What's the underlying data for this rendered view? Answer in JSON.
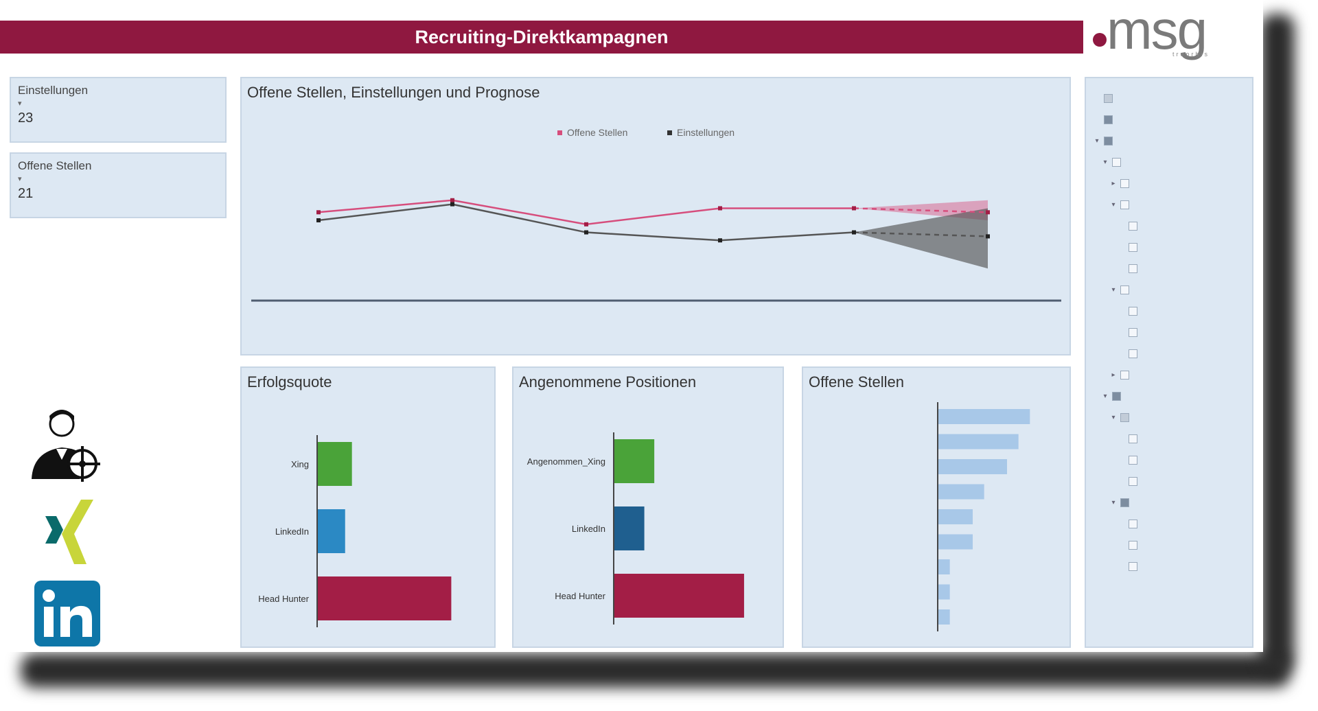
{
  "header": {
    "title": "Recruiting-Direktkampagnen"
  },
  "logo": {
    "text": "msg",
    "subtext": "treorbis",
    "color": "#8f1840"
  },
  "colors": {
    "accent": "#8f1840",
    "panel": "#dde8f3",
    "green": "#4aa339",
    "blue": "#2b89c4",
    "crimson": "#a31e46",
    "bar": "#a8c8e8"
  },
  "kpis": [
    {
      "title": "Einstellungen",
      "value": "23"
    },
    {
      "title": "Offene Stellen",
      "value": "21"
    }
  ],
  "trend": {
    "title": "Offene Stellen, Einstellungen und Prognose",
    "legend": [
      "Offene Stellen",
      "Einstellungen"
    ]
  },
  "erfolgsquote": {
    "title": "Erfolgsquote"
  },
  "angenommene": {
    "title": "Angenommene Positionen"
  },
  "offene": {
    "title": "Offene Stellen"
  },
  "chart_data": [
    {
      "type": "line",
      "title": "Offene Stellen, Einstellungen und Prognose",
      "series": [
        {
          "name": "Offene Stellen",
          "values": [
            22,
            25,
            19,
            23,
            23,
            22
          ],
          "color": "#d64d7c"
        },
        {
          "name": "Einstellungen",
          "values": [
            20,
            24,
            17,
            15,
            17,
            16
          ],
          "color": "#555555"
        }
      ],
      "forecast": [
        {
          "series": "Offene Stellen",
          "from_index": 4,
          "lower": 20,
          "upper": 25
        },
        {
          "series": "Einstellungen",
          "from_index": 4,
          "lower": 8,
          "upper": 23
        }
      ],
      "ylim": [
        0,
        40
      ],
      "legend": "top-center"
    },
    {
      "type": "bar",
      "orientation": "horizontal",
      "title": "Erfolgsquote",
      "categories": [
        "Xing",
        "LinkedIn",
        "Head Hunter"
      ],
      "values": [
        11.5,
        9.2,
        45
      ],
      "colors": [
        "#4aa339",
        "#2b89c4",
        "#a31e46"
      ],
      "xlim": [
        0,
        50
      ]
    },
    {
      "type": "bar",
      "orientation": "horizontal",
      "title": "Angenommene Positionen",
      "categories": [
        "Angenommen_Xing",
        "LinkedIn",
        "Head Hunter"
      ],
      "values": [
        4,
        3,
        13
      ],
      "colors": [
        "#4aa339",
        "#1f5f8f",
        "#a31e46"
      ],
      "xlim": [
        0,
        15
      ]
    },
    {
      "type": "bar",
      "orientation": "horizontal",
      "title": "Offene Stellen",
      "values": [
        8,
        7,
        6,
        4,
        3,
        3,
        1,
        1,
        1
      ],
      "color": "#a8c8e8",
      "xlim": [
        0,
        9
      ]
    }
  ],
  "filter_tree": {
    "nodes": [
      {
        "depth": 0,
        "toggle": "",
        "state": "partial"
      },
      {
        "depth": 0,
        "toggle": "",
        "state": "checked"
      },
      {
        "depth": 0,
        "toggle": "▾",
        "state": "checked"
      },
      {
        "depth": 1,
        "toggle": "▾",
        "state": "none"
      },
      {
        "depth": 2,
        "toggle": "▸",
        "state": "none"
      },
      {
        "depth": 2,
        "toggle": "▾",
        "state": "none"
      },
      {
        "depth": 3,
        "toggle": "",
        "state": "none"
      },
      {
        "depth": 3,
        "toggle": "",
        "state": "none"
      },
      {
        "depth": 3,
        "toggle": "",
        "state": "none"
      },
      {
        "depth": 2,
        "toggle": "▾",
        "state": "none"
      },
      {
        "depth": 3,
        "toggle": "",
        "state": "none"
      },
      {
        "depth": 3,
        "toggle": "",
        "state": "none"
      },
      {
        "depth": 3,
        "toggle": "",
        "state": "none"
      },
      {
        "depth": 2,
        "toggle": "▸",
        "state": "none"
      },
      {
        "depth": 1,
        "toggle": "▾",
        "state": "checked"
      },
      {
        "depth": 2,
        "toggle": "▾",
        "state": "partial"
      },
      {
        "depth": 3,
        "toggle": "",
        "state": "none"
      },
      {
        "depth": 3,
        "toggle": "",
        "state": "none"
      },
      {
        "depth": 3,
        "toggle": "",
        "state": "none"
      },
      {
        "depth": 2,
        "toggle": "▾",
        "state": "checked"
      },
      {
        "depth": 3,
        "toggle": "",
        "state": "none"
      },
      {
        "depth": 3,
        "toggle": "",
        "state": "none"
      },
      {
        "depth": 3,
        "toggle": "",
        "state": "none"
      }
    ]
  },
  "social_icons": [
    "recruiter-target-icon",
    "xing-icon",
    "linkedin-icon"
  ]
}
